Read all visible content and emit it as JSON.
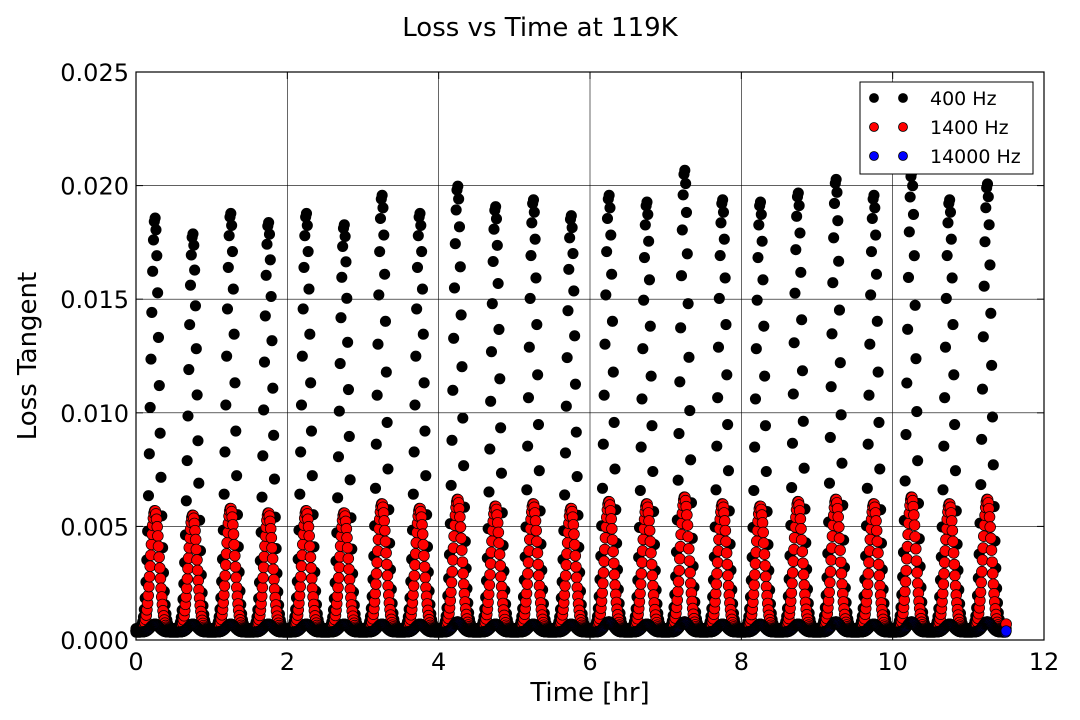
{
  "chart_data": {
    "type": "scatter",
    "title": "Loss vs Time at 119K",
    "xlabel": "Time [hr]",
    "ylabel": "Loss Tangent",
    "xlim": [
      0,
      12
    ],
    "ylim": [
      0,
      0.025
    ],
    "x_ticks": [
      0,
      2,
      4,
      6,
      8,
      10,
      12
    ],
    "y_ticks": [
      0.0,
      0.005,
      0.01,
      0.015,
      0.02,
      0.025
    ],
    "x_tick_labels": [
      "0",
      "2",
      "4",
      "6",
      "8",
      "10",
      "12"
    ],
    "y_tick_labels": [
      "0.000",
      "0.005",
      "0.010",
      "0.015",
      "0.020",
      "0.025"
    ],
    "grid": true,
    "legend_position": "top-right",
    "time_range_hr": [
      0,
      11.5
    ],
    "cycle_period_hr": 0.5,
    "series": [
      {
        "name": "400 Hz",
        "color": "#000000",
        "marker": "circle",
        "baseline": 0.0005,
        "peak_times_hr": [
          0.25,
          0.75,
          1.25,
          1.75,
          2.25,
          2.75,
          3.25,
          3.75,
          4.25,
          4.75,
          5.25,
          5.75,
          6.25,
          6.75,
          7.25,
          7.75,
          8.25,
          8.75,
          9.25,
          9.75,
          10.25,
          10.75,
          11.25
        ],
        "peak_values": [
          0.0186,
          0.0179,
          0.0188,
          0.0184,
          0.0188,
          0.0183,
          0.0196,
          0.0188,
          0.02,
          0.0191,
          0.0194,
          0.0187,
          0.0196,
          0.0193,
          0.0207,
          0.0194,
          0.0193,
          0.0197,
          0.0203,
          0.0196,
          0.0206,
          0.0194,
          0.0201
        ],
        "end_value": 0.0005
      },
      {
        "name": "1400 Hz",
        "color": "#ff0000",
        "marker": "circle",
        "baseline": 0.0004,
        "peak_times_hr": [
          0.25,
          0.75,
          1.25,
          1.75,
          2.25,
          2.75,
          3.25,
          3.75,
          4.25,
          4.75,
          5.25,
          5.75,
          6.25,
          6.75,
          7.25,
          7.75,
          8.25,
          8.75,
          9.25,
          9.75,
          10.25,
          10.75,
          11.25
        ],
        "peak_values": [
          0.0057,
          0.0055,
          0.0058,
          0.0056,
          0.0057,
          0.0056,
          0.006,
          0.0058,
          0.0062,
          0.0059,
          0.006,
          0.0058,
          0.0061,
          0.006,
          0.0063,
          0.006,
          0.0059,
          0.0061,
          0.0062,
          0.006,
          0.0063,
          0.006,
          0.0062
        ],
        "end_value": 0.0007
      },
      {
        "name": "14000 Hz",
        "color": "#0000ff",
        "marker": "circle",
        "baseline": 0.00035,
        "peak_times_hr": [
          0.25,
          0.75,
          1.25,
          1.75,
          2.25,
          2.75,
          3.25,
          3.75,
          4.25,
          4.75,
          5.25,
          5.75,
          6.25,
          6.75,
          7.25,
          7.75,
          8.25,
          8.75,
          9.25,
          9.75,
          10.25,
          10.75,
          11.25
        ],
        "peak_values": [
          0.0007,
          0.0007,
          0.0007,
          0.0007,
          0.0007,
          0.0007,
          0.0007,
          0.0007,
          0.0008,
          0.0007,
          0.0007,
          0.0007,
          0.0008,
          0.0007,
          0.0008,
          0.0007,
          0.0007,
          0.0007,
          0.0008,
          0.0007,
          0.0008,
          0.0007,
          0.0008
        ],
        "end_value": 0.0004
      }
    ]
  }
}
